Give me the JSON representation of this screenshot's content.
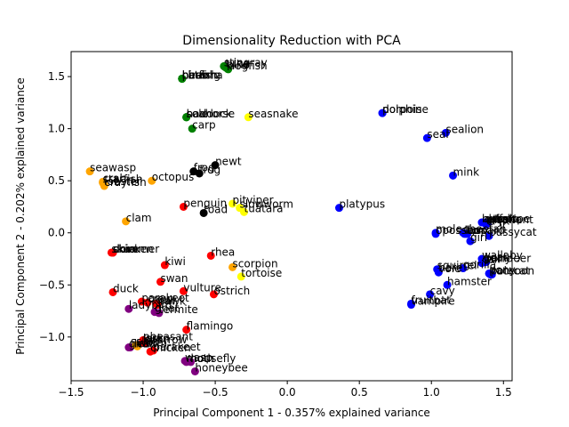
{
  "chart_data": {
    "type": "scatter",
    "title": "Dimensionality Reduction with PCA",
    "xlabel": "Principal Component 1 - 0.357% explained variance",
    "ylabel": "Principal Component 2 - 0.202% explained variance",
    "xlim": [
      -1.5,
      1.56
    ],
    "ylim": [
      -1.42,
      1.74
    ],
    "xticks": [
      -1.5,
      -1.0,
      -0.5,
      0.0,
      0.5,
      1.0,
      1.5
    ],
    "xtick_labels": [
      "−1.5",
      "−1.0",
      "−0.5",
      "0.0",
      "0.5",
      "1.0",
      "1.5"
    ],
    "yticks": [
      -1.0,
      -0.5,
      0.0,
      0.5,
      1.0,
      1.5
    ],
    "ytick_labels": [
      "−1.0",
      "−0.5",
      "0.0",
      "0.5",
      "1.0",
      "1.5"
    ],
    "grid": false,
    "legend": "none",
    "colors": {
      "mammal": "#0000ff",
      "bird": "#ff0000",
      "reptile": "#ffff00",
      "fish": "#008000",
      "amphibian": "#000000",
      "bug": "#800080",
      "invertebrate": "#ffa500"
    },
    "points": [
      {
        "label": "stingray",
        "x": -0.44,
        "y": 1.6,
        "color": "#008000"
      },
      {
        "label": "tuna",
        "x": -0.43,
        "y": 1.59,
        "color": "#008000"
      },
      {
        "label": "pike",
        "x": -0.42,
        "y": 1.58,
        "color": "#008000"
      },
      {
        "label": "dogfish",
        "x": -0.41,
        "y": 1.57,
        "color": "#008000"
      },
      {
        "label": "bass",
        "x": -0.73,
        "y": 1.48,
        "color": "#008000"
      },
      {
        "label": "herring",
        "x": -0.73,
        "y": 1.48,
        "color": "#008000"
      },
      {
        "label": "catfish",
        "x": -0.73,
        "y": 1.48,
        "color": "#008000"
      },
      {
        "label": "chub",
        "x": -0.73,
        "y": 1.48,
        "color": "#008000"
      },
      {
        "label": "piranha",
        "x": -0.73,
        "y": 1.48,
        "color": "#008000"
      },
      {
        "label": "haddock",
        "x": -0.7,
        "y": 1.11,
        "color": "#008000"
      },
      {
        "label": "seahorse",
        "x": -0.7,
        "y": 1.11,
        "color": "#008000"
      },
      {
        "label": "sole",
        "x": -0.7,
        "y": 1.11,
        "color": "#008000"
      },
      {
        "label": "carp",
        "x": -0.66,
        "y": 1.0,
        "color": "#008000"
      },
      {
        "label": "seasnake",
        "x": -0.27,
        "y": 1.11,
        "color": "#ffff00"
      },
      {
        "label": "dolphin",
        "x": 0.66,
        "y": 1.15,
        "color": "#0000ff"
      },
      {
        "label": "porpoise",
        "x": 0.66,
        "y": 1.15,
        "color": "#0000ff"
      },
      {
        "label": "sealion",
        "x": 1.1,
        "y": 0.96,
        "color": "#0000ff"
      },
      {
        "label": "seal",
        "x": 0.97,
        "y": 0.91,
        "color": "#0000ff"
      },
      {
        "label": "mink",
        "x": 1.15,
        "y": 0.55,
        "color": "#0000ff"
      },
      {
        "label": "newt",
        "x": -0.5,
        "y": 0.65,
        "color": "#000000"
      },
      {
        "label": "frog",
        "x": -0.65,
        "y": 0.59,
        "color": "#000000"
      },
      {
        "label": "frog",
        "x": -0.61,
        "y": 0.57,
        "color": "#000000"
      },
      {
        "label": "toad",
        "x": -0.58,
        "y": 0.19,
        "color": "#000000"
      },
      {
        "label": "seawasp",
        "x": -1.37,
        "y": 0.59,
        "color": "#ffa500"
      },
      {
        "label": "crab",
        "x": -1.28,
        "y": 0.49,
        "color": "#ffa500"
      },
      {
        "label": "starfish",
        "x": -1.28,
        "y": 0.48,
        "color": "#ffa500"
      },
      {
        "label": "lobster",
        "x": -1.27,
        "y": 0.46,
        "color": "#ffa500"
      },
      {
        "label": "crayfish",
        "x": -1.27,
        "y": 0.45,
        "color": "#ffa500"
      },
      {
        "label": "octopus",
        "x": -0.94,
        "y": 0.5,
        "color": "#ffa500"
      },
      {
        "label": "clam",
        "x": -1.12,
        "y": 0.11,
        "color": "#ffa500"
      },
      {
        "label": "penguin",
        "x": -0.72,
        "y": 0.25,
        "color": "#ff0000"
      },
      {
        "label": "pitviper",
        "x": -0.38,
        "y": 0.28,
        "color": "#ffff00"
      },
      {
        "label": "slowworm",
        "x": -0.33,
        "y": 0.24,
        "color": "#ffff00"
      },
      {
        "label": "tuatara",
        "x": -0.3,
        "y": 0.2,
        "color": "#ffff00"
      },
      {
        "label": "platypus",
        "x": 0.36,
        "y": 0.24,
        "color": "#0000ff"
      },
      {
        "label": "buffalo",
        "x": 1.35,
        "y": 0.1,
        "color": "#0000ff"
      },
      {
        "label": "antelope",
        "x": 1.36,
        "y": 0.1,
        "color": "#0000ff"
      },
      {
        "label": "deer",
        "x": 1.37,
        "y": 0.1,
        "color": "#0000ff"
      },
      {
        "label": "elephant",
        "x": 1.38,
        "y": 0.09,
        "color": "#0000ff"
      },
      {
        "label": "giraffe",
        "x": 1.39,
        "y": 0.09,
        "color": "#0000ff"
      },
      {
        "label": "oryx",
        "x": 1.38,
        "y": 0.08,
        "color": "#0000ff"
      },
      {
        "label": "mole",
        "x": 1.03,
        "y": 0.0,
        "color": "#0000ff"
      },
      {
        "label": "opossum",
        "x": 1.03,
        "y": -0.01,
        "color": "#0000ff"
      },
      {
        "label": "cheetah",
        "x": 1.22,
        "y": 0.0,
        "color": "#0000ff"
      },
      {
        "label": "leopard",
        "x": 1.23,
        "y": -0.01,
        "color": "#0000ff"
      },
      {
        "label": "lion",
        "x": 1.24,
        "y": -0.01,
        "color": "#0000ff"
      },
      {
        "label": "lynx",
        "x": 1.25,
        "y": -0.01,
        "color": "#0000ff"
      },
      {
        "label": "pussycat",
        "x": 1.4,
        "y": -0.03,
        "color": "#0000ff"
      },
      {
        "label": "girl",
        "x": 1.27,
        "y": -0.08,
        "color": "#0000ff"
      },
      {
        "label": "chicken",
        "x": -1.21,
        "y": -0.19,
        "color": "#ff0000"
      },
      {
        "label": "dove",
        "x": -1.21,
        "y": -0.19,
        "color": "#ff0000"
      },
      {
        "label": "skua",
        "x": -1.22,
        "y": -0.19,
        "color": "#ff0000"
      },
      {
        "label": "skimmer",
        "x": -1.21,
        "y": -0.19,
        "color": "#ff0000"
      },
      {
        "label": "rhea",
        "x": -0.53,
        "y": -0.22,
        "color": "#ff0000"
      },
      {
        "label": "kiwi",
        "x": -0.85,
        "y": -0.31,
        "color": "#ff0000"
      },
      {
        "label": "scorpion",
        "x": -0.38,
        "y": -0.33,
        "color": "#ffa500"
      },
      {
        "label": "tortoise",
        "x": -0.32,
        "y": -0.42,
        "color": "#ffff00"
      },
      {
        "label": "wallaby",
        "x": 1.35,
        "y": -0.25,
        "color": "#0000ff"
      },
      {
        "label": "goat",
        "x": 1.36,
        "y": -0.27,
        "color": "#0000ff"
      },
      {
        "label": "pony",
        "x": 1.37,
        "y": -0.28,
        "color": "#0000ff"
      },
      {
        "label": "reindeer",
        "x": 1.38,
        "y": -0.28,
        "color": "#0000ff"
      },
      {
        "label": "calf",
        "x": 1.35,
        "y": -0.29,
        "color": "#0000ff"
      },
      {
        "label": "squirrel",
        "x": 1.04,
        "y": -0.35,
        "color": "#0000ff"
      },
      {
        "label": "hare",
        "x": 1.05,
        "y": -0.37,
        "color": "#0000ff"
      },
      {
        "label": "gorilla",
        "x": 1.22,
        "y": -0.34,
        "color": "#0000ff"
      },
      {
        "label": "vole",
        "x": 1.05,
        "y": -0.38,
        "color": "#0000ff"
      },
      {
        "label": "fruitbat",
        "x": 0.86,
        "y": -0.68,
        "color": "#0000ff"
      },
      {
        "label": "vampire",
        "x": 0.86,
        "y": -0.69,
        "color": "#0000ff"
      },
      {
        "label": "cavy",
        "x": 0.99,
        "y": -0.59,
        "color": "#0000ff"
      },
      {
        "label": "hamster",
        "x": 1.11,
        "y": -0.5,
        "color": "#0000ff"
      },
      {
        "label": "pony",
        "x": 1.4,
        "y": -0.39,
        "color": "#0000ff"
      },
      {
        "label": "polecat",
        "x": 1.41,
        "y": -0.4,
        "color": "#0000ff"
      },
      {
        "label": "raccoon",
        "x": 1.42,
        "y": -0.4,
        "color": "#0000ff"
      },
      {
        "label": "swan",
        "x": -0.88,
        "y": -0.47,
        "color": "#ff0000"
      },
      {
        "label": "vulture",
        "x": -0.72,
        "y": -0.56,
        "color": "#ff0000"
      },
      {
        "label": "ostrich",
        "x": -0.51,
        "y": -0.59,
        "color": "#ff0000"
      },
      {
        "label": "duck",
        "x": -1.21,
        "y": -0.57,
        "color": "#ff0000"
      },
      {
        "label": "parakeet",
        "x": -1.01,
        "y": -0.66,
        "color": "#ff0000"
      },
      {
        "label": "crow",
        "x": -0.97,
        "y": -0.67,
        "color": "#ff0000"
      },
      {
        "label": "gull",
        "x": -0.91,
        "y": -0.68,
        "color": "#ff0000"
      },
      {
        "label": "hawk",
        "x": -0.9,
        "y": -0.69,
        "color": "#ff0000"
      },
      {
        "label": "ladybird",
        "x": -1.1,
        "y": -0.73,
        "color": "#800080"
      },
      {
        "label": "gnat",
        "x": -0.92,
        "y": -0.76,
        "color": "#800080"
      },
      {
        "label": "termite",
        "x": -0.89,
        "y": -0.77,
        "color": "#800080"
      },
      {
        "label": "flamingo",
        "x": -0.7,
        "y": -0.93,
        "color": "#ff0000"
      },
      {
        "label": "pheasant",
        "x": -1.0,
        "y": -1.03,
        "color": "#ff0000"
      },
      {
        "label": "lark",
        "x": -1.0,
        "y": -1.05,
        "color": "#ff0000"
      },
      {
        "label": "sparrow",
        "x": -0.99,
        "y": -1.06,
        "color": "#ff0000"
      },
      {
        "label": "wren",
        "x": -1.0,
        "y": -1.05,
        "color": "#ff0000"
      },
      {
        "label": "gnat",
        "x": -1.1,
        "y": -1.1,
        "color": "#800080"
      },
      {
        "label": "flea",
        "x": -1.09,
        "y": -1.1,
        "color": "#800080"
      },
      {
        "label": "slug",
        "x": -1.05,
        "y": -1.08,
        "color": "#ffa500"
      },
      {
        "label": "worm",
        "x": -1.04,
        "y": -1.09,
        "color": "#ffa500"
      },
      {
        "label": "chicken",
        "x": -0.95,
        "y": -1.14,
        "color": "#ff0000"
      },
      {
        "label": "parakeet",
        "x": -0.93,
        "y": -1.13,
        "color": "#ff0000"
      },
      {
        "label": "wasp",
        "x": -0.71,
        "y": -1.23,
        "color": "#800080"
      },
      {
        "label": "moth",
        "x": -0.7,
        "y": -1.24,
        "color": "#800080"
      },
      {
        "label": "housefly",
        "x": -0.67,
        "y": -1.24,
        "color": "#800080"
      },
      {
        "label": "honeybee",
        "x": -0.64,
        "y": -1.33,
        "color": "#800080"
      }
    ]
  }
}
